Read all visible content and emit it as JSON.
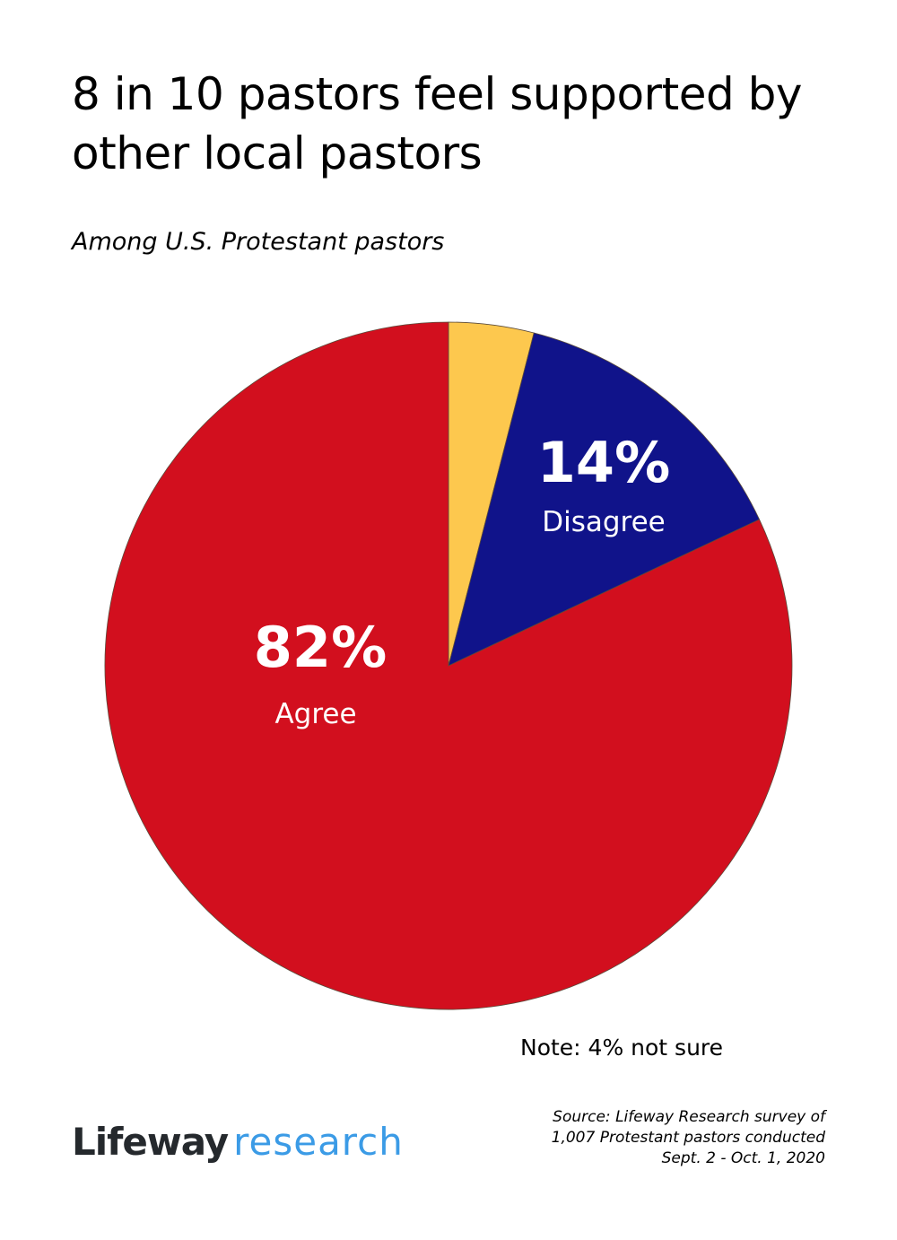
{
  "header": {
    "title": "8 in 10 pastors feel supported by other local pastors",
    "subtitle": "Among U.S. Protestant pastors"
  },
  "labels": {
    "agree_pct": "82%",
    "agree_label": "Agree",
    "disagree_pct": "14%",
    "disagree_label": "Disagree"
  },
  "footer": {
    "note": "Note: 4% not sure",
    "logo_brand": "Lifeway",
    "logo_sub": "research",
    "source_lines": [
      "Source: Lifeway Research survey of",
      "1,007 Protestant pastors conducted",
      "Sept. 2 - Oct. 1, 2020"
    ]
  },
  "colors": {
    "agree": "#d20f1e",
    "disagree": "#10138a",
    "not_sure": "#fdc84e",
    "logo_brand": "#25292d",
    "logo_sub": "#3b9be6"
  },
  "chart_data": {
    "type": "pie",
    "title": "8 in 10 pastors feel supported by other local pastors",
    "subtitle": "Among U.S. Protestant pastors",
    "categories": [
      "Not sure",
      "Disagree",
      "Agree"
    ],
    "values": [
      4,
      14,
      82
    ],
    "colors": [
      "#fdc84e",
      "#10138a",
      "#d20f1e"
    ],
    "start_angle": "12 o'clock, clockwise",
    "data_labels": [
      {
        "category": "Disagree",
        "text": "14%"
      },
      {
        "category": "Agree",
        "text": "82%"
      }
    ],
    "annotations": [
      "Note: 4% not sure"
    ],
    "legend": "none (labels inside slices)"
  }
}
